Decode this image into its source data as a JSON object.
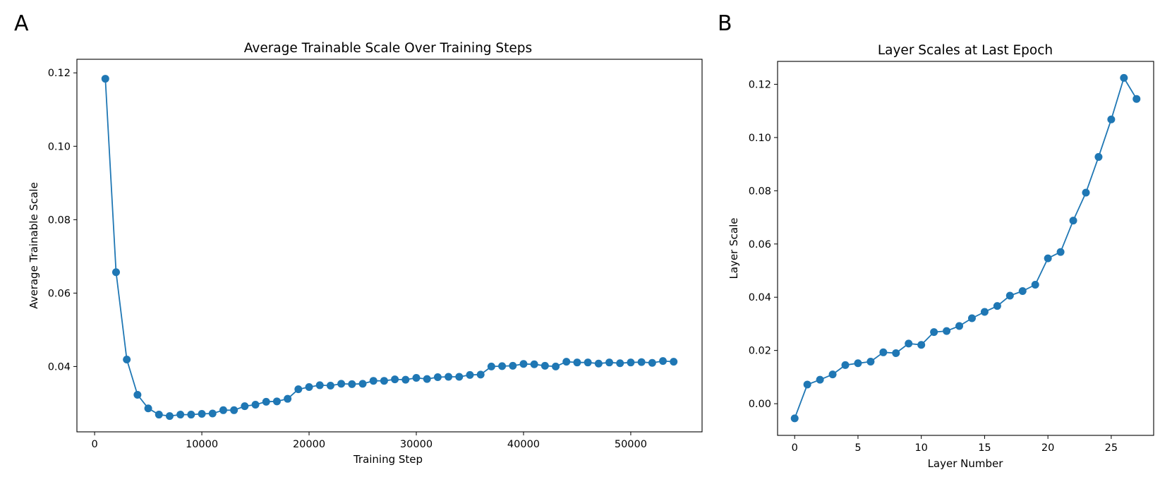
{
  "chart_data": [
    {
      "panel": "A",
      "type": "line",
      "title": "Average Trainable Scale Over Training Steps",
      "xlabel": "Training Step",
      "ylabel": "Average Trainable Scale",
      "xlim": [
        -1650,
        56650
      ],
      "ylim": [
        0.0222,
        0.1237
      ],
      "xticks": [
        0,
        10000,
        20000,
        30000,
        40000,
        50000
      ],
      "xtick_labels": [
        "0",
        "10000",
        "20000",
        "30000",
        "40000",
        "50000"
      ],
      "yticks": [
        0.04,
        0.06,
        0.08,
        0.1,
        0.12
      ],
      "ytick_labels": [
        "0.04",
        "0.06",
        "0.08",
        "0.10",
        "0.12"
      ],
      "color": "#1f77b4",
      "series": [
        {
          "name": "Average Trainable Scale",
          "x": [
            1000,
            2000,
            3000,
            4000,
            5000,
            6000,
            7000,
            8000,
            9000,
            10000,
            11000,
            12000,
            13000,
            14000,
            15000,
            16000,
            17000,
            18000,
            19000,
            20000,
            21000,
            22000,
            23000,
            24000,
            25000,
            26000,
            27000,
            28000,
            29000,
            30000,
            31000,
            32000,
            33000,
            34000,
            35000,
            36000,
            37000,
            38000,
            39000,
            40000,
            41000,
            42000,
            43000,
            44000,
            45000,
            46000,
            47000,
            48000,
            49000,
            50000,
            51000,
            52000,
            53000,
            54000
          ],
          "values": [
            0.1184,
            0.0657,
            0.0419,
            0.0323,
            0.0286,
            0.0269,
            0.0265,
            0.0269,
            0.0269,
            0.0271,
            0.0272,
            0.0281,
            0.0281,
            0.0292,
            0.0296,
            0.0304,
            0.0305,
            0.0312,
            0.0338,
            0.0344,
            0.0349,
            0.0348,
            0.0353,
            0.0352,
            0.0353,
            0.0361,
            0.0361,
            0.0365,
            0.0364,
            0.0369,
            0.0366,
            0.0371,
            0.0372,
            0.0372,
            0.0377,
            0.0378,
            0.04,
            0.0401,
            0.0402,
            0.0407,
            0.0406,
            0.0402,
            0.04,
            0.0413,
            0.0411,
            0.0411,
            0.0408,
            0.0411,
            0.0409,
            0.0411,
            0.0412,
            0.041,
            0.0415,
            0.0413
          ]
        }
      ]
    },
    {
      "panel": "B",
      "type": "line",
      "title": "Layer Scales at Last Epoch",
      "xlabel": "Layer Number",
      "ylabel": "Layer Scale",
      "xlim": [
        -1.35,
        28.35
      ],
      "ylim": [
        -0.0119,
        0.1286
      ],
      "xticks": [
        0,
        5,
        10,
        15,
        20,
        25
      ],
      "xtick_labels": [
        "0",
        "5",
        "10",
        "15",
        "20",
        "25"
      ],
      "yticks": [
        0.0,
        0.02,
        0.04,
        0.06,
        0.08,
        0.1,
        0.12
      ],
      "ytick_labels": [
        "0.00",
        "0.02",
        "0.04",
        "0.06",
        "0.08",
        "0.10",
        "0.12"
      ],
      "color": "#1f77b4",
      "series": [
        {
          "name": "Layer Scale",
          "x": [
            0,
            1,
            2,
            3,
            4,
            5,
            6,
            7,
            8,
            9,
            10,
            11,
            12,
            13,
            14,
            15,
            16,
            17,
            18,
            19,
            20,
            21,
            22,
            23,
            24,
            25,
            26,
            27
          ],
          "values": [
            -0.0055,
            0.0072,
            0.009,
            0.011,
            0.0145,
            0.0152,
            0.0158,
            0.0193,
            0.019,
            0.0226,
            0.0221,
            0.0269,
            0.0273,
            0.0292,
            0.0321,
            0.0345,
            0.0367,
            0.0406,
            0.0423,
            0.0447,
            0.0546,
            0.057,
            0.0688,
            0.0793,
            0.0927,
            0.1068,
            0.1224,
            0.1145
          ]
        }
      ]
    }
  ]
}
